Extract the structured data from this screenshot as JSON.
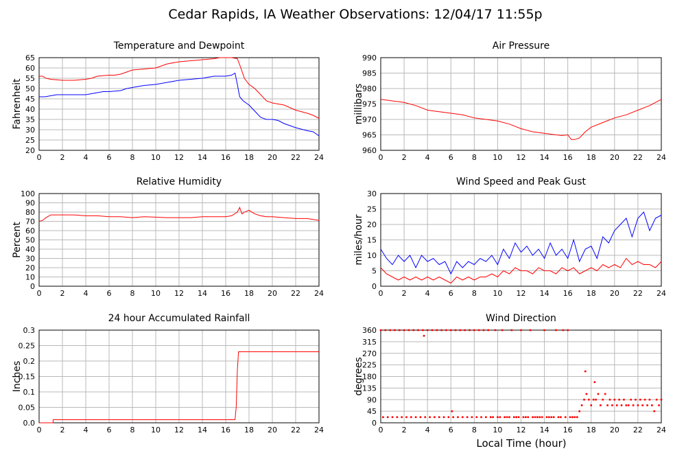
{
  "page_title": "Cedar Rapids, IA Weather Observations: 12/04/17 11:55p",
  "x_axis_label": "Local Time (hour)",
  "chart_data": [
    {
      "id": "temp",
      "type": "line",
      "title": "Temperature and Dewpoint",
      "ylabel": "Fahrenheit",
      "xlim": [
        0,
        24
      ],
      "ylim": [
        20,
        65
      ],
      "xticks": [
        0,
        2,
        4,
        6,
        8,
        10,
        12,
        14,
        16,
        18,
        20,
        22,
        24
      ],
      "yticks": [
        20,
        25,
        30,
        35,
        40,
        45,
        50,
        55,
        60,
        65
      ],
      "grid": true,
      "series": [
        {
          "color": "#ff0000",
          "x": [
            0,
            0.3,
            0.6,
            1,
            2,
            3,
            4,
            4.5,
            5,
            6,
            6.5,
            7,
            7.5,
            8,
            9,
            10,
            10.5,
            11,
            12,
            13,
            14,
            15,
            15.5,
            16,
            16.5,
            17,
            17.3,
            17.6,
            18,
            18.5,
            19,
            19.5,
            20,
            21,
            22,
            23,
            23.5,
            24
          ],
          "y": [
            56,
            56,
            55,
            54.5,
            54,
            54,
            54.5,
            55,
            56,
            56.5,
            56.5,
            57,
            58,
            59,
            59.5,
            60,
            61,
            62,
            63,
            63.5,
            64,
            64.5,
            65,
            65,
            65,
            64.5,
            60,
            55,
            52,
            50,
            47,
            44,
            43,
            42,
            39.5,
            38,
            37,
            35.5
          ]
        },
        {
          "color": "#0000ff",
          "x": [
            0,
            0.5,
            1,
            1.5,
            2,
            3,
            4,
            4.5,
            5,
            5.5,
            6,
            7,
            7.5,
            8,
            9,
            10,
            11,
            12,
            13,
            14,
            15,
            15.5,
            16,
            16.5,
            16.8,
            17,
            17.2,
            17.5,
            18,
            18.5,
            19,
            19.5,
            20,
            20.5,
            21,
            22,
            23,
            23.5,
            24
          ],
          "y": [
            46,
            46,
            46.5,
            47,
            47,
            47,
            47,
            47.5,
            48,
            48.5,
            48.5,
            49,
            50,
            50.5,
            51.5,
            52,
            53,
            54,
            54.5,
            55,
            56,
            56,
            56,
            56.5,
            57.5,
            52,
            46,
            44,
            42,
            39,
            36,
            35,
            35,
            34.5,
            33,
            31,
            29.5,
            29,
            27
          ]
        }
      ]
    },
    {
      "id": "pressure",
      "type": "line",
      "title": "Air Pressure",
      "ylabel": "millibars",
      "xlim": [
        0,
        24
      ],
      "ylim": [
        960,
        990
      ],
      "xticks": [
        0,
        2,
        4,
        6,
        8,
        10,
        12,
        14,
        16,
        18,
        20,
        22,
        24
      ],
      "yticks": [
        960,
        965,
        970,
        975,
        980,
        985,
        990
      ],
      "grid": true,
      "series": [
        {
          "color": "#ff0000",
          "x": [
            0,
            1,
            2,
            3,
            4,
            5,
            6,
            7,
            8,
            9,
            10,
            11,
            12,
            13,
            14,
            15,
            15.5,
            16,
            16.3,
            16.6,
            17,
            17.5,
            18,
            19,
            20,
            21,
            22,
            23,
            24
          ],
          "y": [
            976.5,
            976,
            975.5,
            974.5,
            973,
            972.5,
            972,
            971.5,
            970.5,
            970,
            969.5,
            968.5,
            967,
            966,
            965.5,
            965,
            964.8,
            965,
            963.5,
            963.5,
            964,
            966,
            967.5,
            969,
            970.5,
            971.5,
            973,
            974.5,
            976.5
          ]
        }
      ]
    },
    {
      "id": "rh",
      "type": "line",
      "title": "Relative Humidity",
      "ylabel": "Percent",
      "xlim": [
        0,
        24
      ],
      "ylim": [
        0,
        100
      ],
      "xticks": [
        0,
        2,
        4,
        6,
        8,
        10,
        12,
        14,
        16,
        18,
        20,
        22,
        24
      ],
      "yticks": [
        0,
        10,
        20,
        30,
        40,
        50,
        60,
        70,
        80,
        90,
        100
      ],
      "grid": true,
      "series": [
        {
          "color": "#ff0000",
          "x": [
            0,
            0.3,
            0.6,
            1,
            2,
            3,
            4,
            5,
            6,
            7,
            8,
            9,
            10,
            11,
            12,
            13,
            14,
            15,
            16,
            16.5,
            17,
            17.2,
            17.4,
            17.6,
            18,
            18.5,
            19,
            19.5,
            20,
            21,
            22,
            23,
            24
          ],
          "y": [
            70,
            71,
            74,
            77,
            77,
            77,
            76,
            76,
            75,
            75,
            74,
            75,
            74.5,
            74,
            74,
            74,
            75,
            75,
            75,
            76,
            80,
            85,
            78,
            80,
            82,
            78,
            76,
            75,
            75,
            74,
            73,
            73,
            71
          ]
        }
      ]
    },
    {
      "id": "wind",
      "type": "line",
      "title": "Wind Speed and Peak Gust",
      "ylabel": "miles/hour",
      "xlim": [
        0,
        24
      ],
      "ylim": [
        0,
        30
      ],
      "xticks": [
        0,
        2,
        4,
        6,
        8,
        10,
        12,
        14,
        16,
        18,
        20,
        22,
        24
      ],
      "yticks": [
        0,
        5,
        10,
        15,
        20,
        25,
        30
      ],
      "grid": true,
      "series": [
        {
          "color": "#0000ff",
          "x": [
            0,
            0.5,
            1,
            1.5,
            2,
            2.5,
            3,
            3.5,
            4,
            4.5,
            5,
            5.5,
            6,
            6.5,
            7,
            7.5,
            8,
            8.5,
            9,
            9.5,
            10,
            10.5,
            11,
            11.5,
            12,
            12.5,
            13,
            13.5,
            14,
            14.5,
            15,
            15.5,
            16,
            16.5,
            17,
            17.5,
            18,
            18.5,
            19,
            19.5,
            20,
            20.5,
            21,
            21.5,
            22,
            22.5,
            23,
            23.5,
            24
          ],
          "y": [
            12,
            9,
            7,
            10,
            8,
            10,
            6,
            10,
            8,
            9,
            7,
            8,
            4,
            8,
            6,
            8,
            7,
            9,
            8,
            10,
            7,
            12,
            9,
            14,
            11,
            13,
            10,
            12,
            9,
            14,
            10,
            12,
            9,
            15,
            8,
            12,
            13,
            9,
            16,
            14,
            18,
            20,
            22,
            16,
            22,
            24,
            18,
            22,
            23
          ]
        },
        {
          "color": "#ff0000",
          "x": [
            0,
            0.5,
            1,
            1.5,
            2,
            2.5,
            3,
            3.5,
            4,
            4.5,
            5,
            5.5,
            6,
            6.5,
            7,
            7.5,
            8,
            8.5,
            9,
            9.5,
            10,
            10.5,
            11,
            11.5,
            12,
            12.5,
            13,
            13.5,
            14,
            14.5,
            15,
            15.5,
            16,
            16.5,
            17,
            17.5,
            18,
            18.5,
            19,
            19.5,
            20,
            20.5,
            21,
            21.5,
            22,
            22.5,
            23,
            23.5,
            24
          ],
          "y": [
            6,
            4,
            3,
            2,
            3,
            2,
            3,
            2,
            3,
            2,
            3,
            2,
            1,
            3,
            2,
            3,
            2,
            3,
            3,
            4,
            3,
            5,
            4,
            6,
            5,
            5,
            4,
            6,
            5,
            5,
            4,
            6,
            5,
            6,
            4,
            5,
            6,
            5,
            7,
            6,
            7,
            6,
            9,
            7,
            8,
            7,
            7,
            6,
            8
          ]
        }
      ]
    },
    {
      "id": "rain",
      "type": "line",
      "title": "24 hour Accumulated Rainfall",
      "ylabel": "Inches",
      "xlim": [
        0,
        24
      ],
      "ylim": [
        0,
        0.3
      ],
      "xticks": [
        0,
        2,
        4,
        6,
        8,
        10,
        12,
        14,
        16,
        18,
        20,
        22,
        24
      ],
      "yticks": [
        0,
        0.05,
        0.1,
        0.15,
        0.2,
        0.25,
        0.3
      ],
      "ytick_labels": [
        "0.0",
        "0.05",
        "0.1",
        "0.15",
        "0.2",
        "0.25",
        "0.3"
      ],
      "grid": true,
      "series": [
        {
          "color": "#ff0000",
          "x": [
            0,
            1.2,
            1.2,
            16.8,
            16.9,
            17.0,
            17.1,
            24
          ],
          "y": [
            0,
            0,
            0.01,
            0.01,
            0.05,
            0.17,
            0.23,
            0.23
          ]
        }
      ]
    },
    {
      "id": "dir",
      "type": "scatter",
      "title": "Wind Direction",
      "ylabel": "degrees",
      "xlim": [
        0,
        24
      ],
      "ylim": [
        0,
        360
      ],
      "xticks": [
        0,
        2,
        4,
        6,
        8,
        10,
        12,
        14,
        16,
        18,
        20,
        22,
        24
      ],
      "yticks": [
        0,
        45,
        90,
        135,
        180,
        225,
        270,
        315,
        360
      ],
      "grid": true,
      "series": [
        {
          "color": "#ff0000",
          "x": [
            0,
            0.2,
            0.4,
            0.6,
            0.8,
            1.0,
            1.2,
            1.4,
            1.6,
            1.8,
            2.0,
            2.2,
            2.4,
            2.6,
            2.8,
            3.0,
            3.2,
            3.4,
            3.6,
            3.7,
            3.8,
            4.0,
            4.2,
            4.4,
            4.6,
            4.8,
            5.0,
            5.2,
            5.4,
            5.6,
            5.8,
            6.0,
            6.1,
            6.2,
            6.4,
            6.6,
            6.8,
            7.0,
            7.2,
            7.4,
            7.6,
            7.8,
            8.0,
            8.2,
            8.4,
            8.6,
            8.8,
            9.0,
            9.2,
            9.4,
            9.6,
            9.8,
            10.0,
            10.2,
            10.4,
            10.6,
            10.8,
            11.0,
            11.2,
            11.4,
            11.6,
            11.8,
            12.0,
            12.2,
            12.4,
            12.6,
            12.8,
            13.0,
            13.2,
            13.4,
            13.6,
            13.8,
            14.0,
            14.2,
            14.4,
            14.6,
            14.8,
            15.0,
            15.2,
            15.4,
            15.6,
            15.8,
            16.0,
            16.2,
            16.4,
            16.6,
            16.8,
            17.0,
            17.2,
            17.4,
            17.5,
            17.6,
            17.8,
            18.0,
            18.2,
            18.3,
            18.4,
            18.6,
            18.8,
            19.0,
            19.2,
            19.4,
            19.6,
            19.8,
            20.0,
            20.2,
            20.4,
            20.6,
            20.8,
            21.0,
            21.2,
            21.4,
            21.6,
            21.8,
            22.0,
            22.2,
            22.4,
            22.6,
            22.8,
            23.0,
            23.2,
            23.4,
            23.6,
            23.8,
            24.0
          ],
          "y": [
            360,
            22,
            360,
            22,
            360,
            22,
            360,
            22,
            360,
            22,
            360,
            22,
            360,
            22,
            360,
            22,
            360,
            22,
            360,
            338,
            22,
            360,
            22,
            360,
            22,
            360,
            22,
            360,
            22,
            360,
            22,
            360,
            45,
            22,
            360,
            22,
            360,
            22,
            360,
            22,
            360,
            22,
            360,
            22,
            360,
            22,
            360,
            22,
            360,
            22,
            22,
            360,
            22,
            22,
            360,
            22,
            22,
            22,
            360,
            22,
            22,
            22,
            360,
            22,
            22,
            22,
            360,
            22,
            22,
            22,
            22,
            22,
            360,
            22,
            22,
            22,
            22,
            360,
            22,
            22,
            360,
            22,
            360,
            22,
            22,
            22,
            22,
            45,
            68,
            90,
            200,
            112,
            90,
            68,
            90,
            158,
            90,
            112,
            68,
            90,
            112,
            68,
            90,
            68,
            90,
            68,
            90,
            68,
            90,
            68,
            68,
            90,
            68,
            90,
            68,
            90,
            68,
            90,
            68,
            90,
            68,
            45,
            90,
            68,
            90
          ]
        }
      ]
    }
  ]
}
